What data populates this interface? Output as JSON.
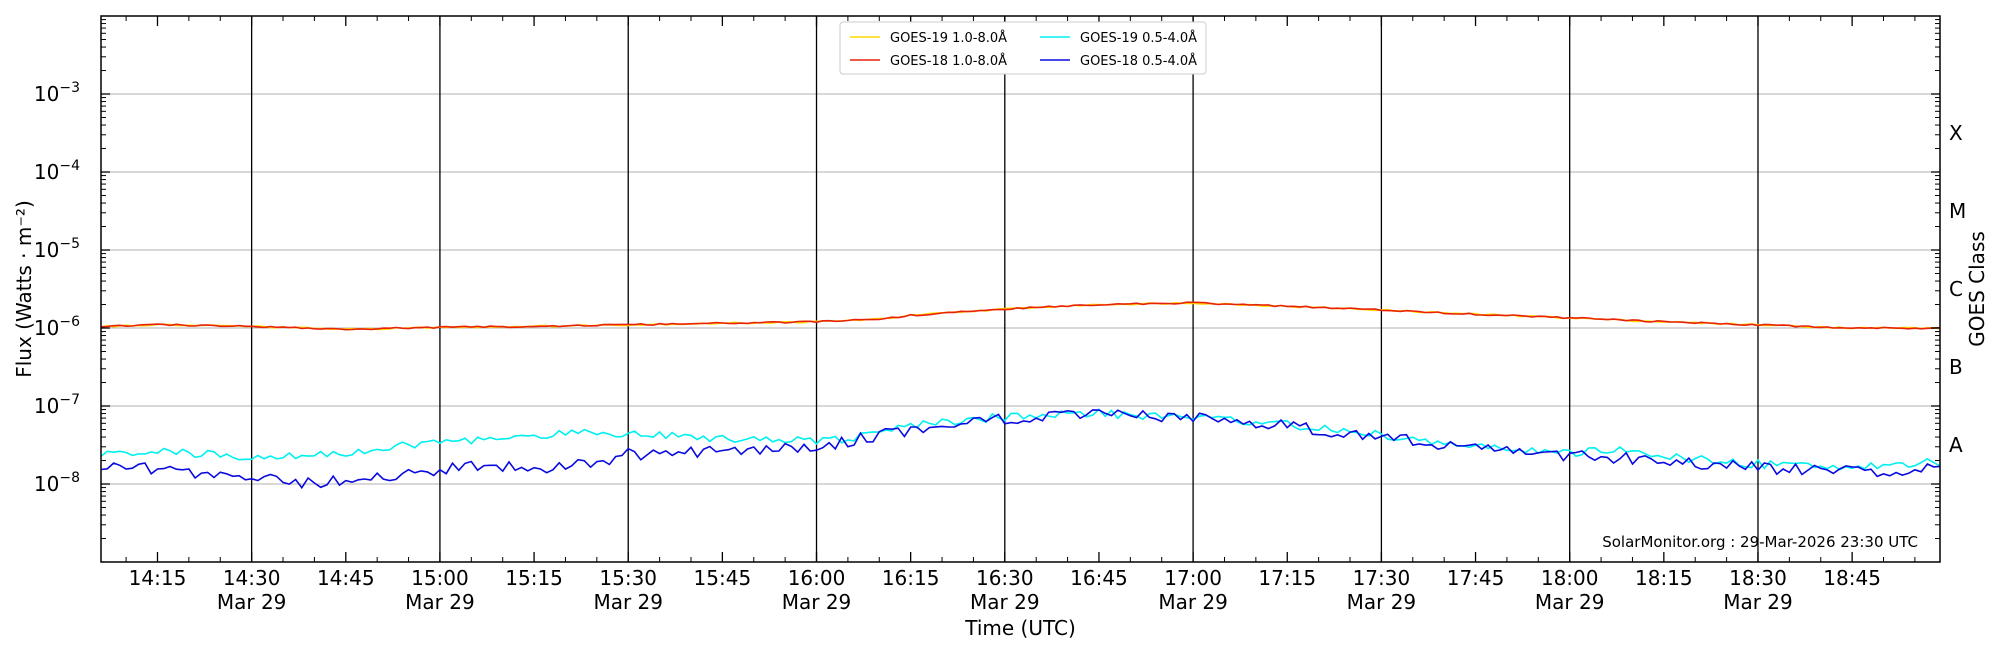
{
  "chart_data": {
    "type": "line",
    "xlabel": "Time (UTC)",
    "ylabel": "Flux (Watts · m⁻²)",
    "y_right_label": "GOES Class",
    "y_scale": "log",
    "ylim": [
      1e-09,
      0.01
    ],
    "xlim": [
      "2026-03-29 14:06",
      "2026-03-29 18:59"
    ],
    "grid": true,
    "legend_position": "top-center",
    "y_ticks": [
      {
        "value": 1e-08,
        "base": "10",
        "exp": "−8"
      },
      {
        "value": 1e-07,
        "base": "10",
        "exp": "−7"
      },
      {
        "value": 1e-06,
        "base": "10",
        "exp": "−6"
      },
      {
        "value": 1e-05,
        "base": "10",
        "exp": "−5"
      },
      {
        "value": 0.0001,
        "base": "10",
        "exp": "−4"
      },
      {
        "value": 0.001,
        "base": "10",
        "exp": "−3"
      }
    ],
    "x_ticks": [
      {
        "time": "14:15",
        "label": "14:15",
        "date": ""
      },
      {
        "time": "14:30",
        "label": "14:30",
        "date": "Mar 29"
      },
      {
        "time": "14:45",
        "label": "14:45",
        "date": ""
      },
      {
        "time": "15:00",
        "label": "15:00",
        "date": "Mar 29"
      },
      {
        "time": "15:15",
        "label": "15:15",
        "date": ""
      },
      {
        "time": "15:30",
        "label": "15:30",
        "date": "Mar 29"
      },
      {
        "time": "15:45",
        "label": "15:45",
        "date": ""
      },
      {
        "time": "16:00",
        "label": "16:00",
        "date": "Mar 29"
      },
      {
        "time": "16:15",
        "label": "16:15",
        "date": ""
      },
      {
        "time": "16:30",
        "label": "16:30",
        "date": "Mar 29"
      },
      {
        "time": "16:45",
        "label": "16:45",
        "date": ""
      },
      {
        "time": "17:00",
        "label": "17:00",
        "date": "Mar 29"
      },
      {
        "time": "17:15",
        "label": "17:15",
        "date": ""
      },
      {
        "time": "17:30",
        "label": "17:30",
        "date": "Mar 29"
      },
      {
        "time": "17:45",
        "label": "17:45",
        "date": ""
      },
      {
        "time": "18:00",
        "label": "18:00",
        "date": "Mar 29"
      },
      {
        "time": "18:15",
        "label": "18:15",
        "date": ""
      },
      {
        "time": "18:30",
        "label": "18:30",
        "date": "Mar 29"
      },
      {
        "time": "18:45",
        "label": "18:45",
        "date": ""
      }
    ],
    "vertical_lines": [
      "14:30",
      "15:00",
      "15:30",
      "16:00",
      "16:30",
      "17:00",
      "17:30",
      "18:00",
      "18:30"
    ],
    "goes_classes": [
      {
        "label": "A",
        "min": 1e-08,
        "max": 1e-07
      },
      {
        "label": "B",
        "min": 1e-07,
        "max": 1e-06
      },
      {
        "label": "C",
        "min": 1e-06,
        "max": 1e-05
      },
      {
        "label": "M",
        "min": 1e-05,
        "max": 0.0001
      },
      {
        "label": "X",
        "min": 0.0001,
        "max": 0.001
      }
    ],
    "credit": "SolarMonitor.org : 29-Mar-2026 23:30 UTC",
    "series": [
      {
        "name": "GOES-19 1.0-8.0Å",
        "color": "#ffd700",
        "points": [
          [
            "14:06",
            1.05e-06
          ],
          [
            "14:15",
            1.1e-06
          ],
          [
            "14:30",
            1.05e-06
          ],
          [
            "14:45",
            9.6e-07
          ],
          [
            "15:00",
            1.02e-06
          ],
          [
            "15:15",
            1.05e-06
          ],
          [
            "15:30",
            1.1e-06
          ],
          [
            "15:45",
            1.15e-06
          ],
          [
            "16:00",
            1.2e-06
          ],
          [
            "16:10",
            1.3e-06
          ],
          [
            "16:15",
            1.45e-06
          ],
          [
            "16:30",
            1.75e-06
          ],
          [
            "16:45",
            2e-06
          ],
          [
            "17:00",
            2.1e-06
          ],
          [
            "17:15",
            1.9e-06
          ],
          [
            "17:30",
            1.7e-06
          ],
          [
            "17:45",
            1.5e-06
          ],
          [
            "18:00",
            1.35e-06
          ],
          [
            "18:15",
            1.2e-06
          ],
          [
            "18:30",
            1.1e-06
          ],
          [
            "18:45",
            1e-06
          ],
          [
            "18:59",
            1e-06
          ]
        ]
      },
      {
        "name": "GOES-18 1.0-8.0Å",
        "color": "#e8220a",
        "points": [
          [
            "14:06",
            1.05e-06
          ],
          [
            "14:15",
            1.1e-06
          ],
          [
            "14:30",
            1.05e-06
          ],
          [
            "14:45",
            9.6e-07
          ],
          [
            "15:00",
            1.02e-06
          ],
          [
            "15:15",
            1.05e-06
          ],
          [
            "15:30",
            1.1e-06
          ],
          [
            "15:45",
            1.15e-06
          ],
          [
            "16:00",
            1.2e-06
          ],
          [
            "16:10",
            1.3e-06
          ],
          [
            "16:15",
            1.45e-06
          ],
          [
            "16:30",
            1.75e-06
          ],
          [
            "16:45",
            2e-06
          ],
          [
            "17:00",
            2.1e-06
          ],
          [
            "17:15",
            1.9e-06
          ],
          [
            "17:30",
            1.7e-06
          ],
          [
            "17:45",
            1.5e-06
          ],
          [
            "18:00",
            1.35e-06
          ],
          [
            "18:15",
            1.2e-06
          ],
          [
            "18:30",
            1.1e-06
          ],
          [
            "18:45",
            1e-06
          ],
          [
            "18:59",
            1e-06
          ]
        ]
      },
      {
        "name": "GOES-19 0.5-4.0Å",
        "color": "#00f0f0",
        "points": [
          [
            "14:06",
            2.3e-08
          ],
          [
            "14:15",
            2.8e-08
          ],
          [
            "14:20",
            2.4e-08
          ],
          [
            "14:30",
            2.3e-08
          ],
          [
            "14:45",
            2.5e-08
          ],
          [
            "15:00",
            3.5e-08
          ],
          [
            "15:15",
            4e-08
          ],
          [
            "15:20",
            4.6e-08
          ],
          [
            "15:30",
            4.5e-08
          ],
          [
            "15:45",
            3.9e-08
          ],
          [
            "16:00",
            3.7e-08
          ],
          [
            "16:05",
            3.8e-08
          ],
          [
            "16:15",
            5.5e-08
          ],
          [
            "16:30",
            7.3e-08
          ],
          [
            "16:45",
            8e-08
          ],
          [
            "17:00",
            7.2e-08
          ],
          [
            "17:15",
            5.8e-08
          ],
          [
            "17:30",
            4.2e-08
          ],
          [
            "17:45",
            3e-08
          ],
          [
            "18:00",
            2.5e-08
          ],
          [
            "18:10",
            2.7e-08
          ],
          [
            "18:15",
            2.2e-08
          ],
          [
            "18:30",
            1.8e-08
          ],
          [
            "18:45",
            1.7e-08
          ],
          [
            "18:59",
            1.9e-08
          ]
        ]
      },
      {
        "name": "GOES-18 0.5-4.0Å",
        "color": "#0a0ae0",
        "points": [
          [
            "14:06",
            1.6e-08
          ],
          [
            "14:10",
            1.7e-08
          ],
          [
            "14:15",
            1.5e-08
          ],
          [
            "14:30",
            1.3e-08
          ],
          [
            "14:38",
            1e-08
          ],
          [
            "14:45",
            1.1e-08
          ],
          [
            "15:00",
            1.5e-08
          ],
          [
            "15:05",
            1.7e-08
          ],
          [
            "15:15",
            1.6e-08
          ],
          [
            "15:25",
            1.9e-08
          ],
          [
            "15:30",
            2.4e-08
          ],
          [
            "15:45",
            2.6e-08
          ],
          [
            "16:00",
            3e-08
          ],
          [
            "16:15",
            5e-08
          ],
          [
            "16:30",
            7e-08
          ],
          [
            "16:45",
            7.6e-08
          ],
          [
            "17:00",
            7e-08
          ],
          [
            "17:15",
            5.6e-08
          ],
          [
            "17:30",
            4e-08
          ],
          [
            "17:45",
            2.9e-08
          ],
          [
            "18:00",
            2.3e-08
          ],
          [
            "18:15",
            2e-08
          ],
          [
            "18:30",
            1.6e-08
          ],
          [
            "18:45",
            1.5e-08
          ],
          [
            "18:50",
            1.3e-08
          ],
          [
            "18:59",
            1.9e-08
          ]
        ]
      }
    ]
  }
}
